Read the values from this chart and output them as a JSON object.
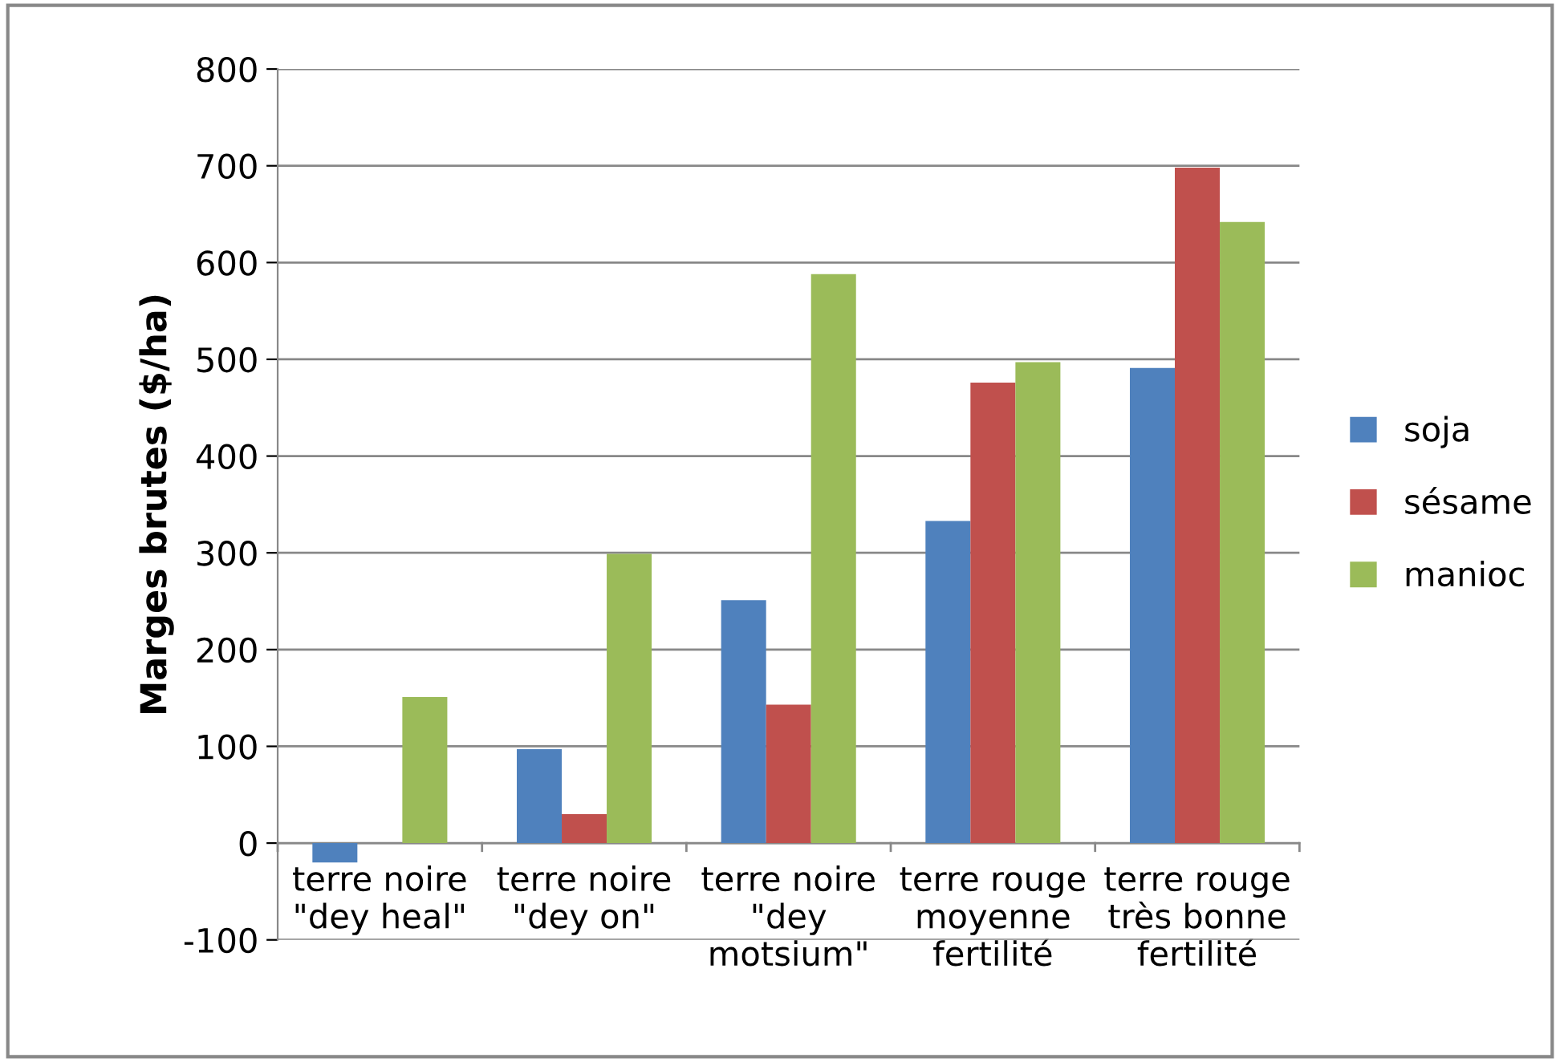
{
  "chart_data": {
    "type": "bar",
    "ylabel": "Marges brutes ($/ha)",
    "categories": [
      "terre noire\n\"dey heal\"",
      "terre noire\n\"dey on\"",
      "terre noire\n\"dey\nmotsium\"",
      "terre rouge\nmoyenne\nfertilité",
      "terre rouge\ntrès bonne\nfertilité"
    ],
    "series": [
      {
        "name": "soja",
        "color": "#4f81bd",
        "values": [
          -20,
          97,
          251,
          333,
          491
        ]
      },
      {
        "name": "sésame",
        "color": "#c0504d",
        "values": [
          0,
          30,
          143,
          476,
          698
        ]
      },
      {
        "name": "manioc",
        "color": "#9bbb59",
        "values": [
          151,
          299,
          588,
          497,
          642
        ]
      }
    ],
    "ylim": [
      -100,
      800
    ],
    "yticks": [
      -100,
      0,
      100,
      200,
      300,
      400,
      500,
      600,
      700,
      800
    ],
    "grid": "y",
    "legend": "right"
  }
}
